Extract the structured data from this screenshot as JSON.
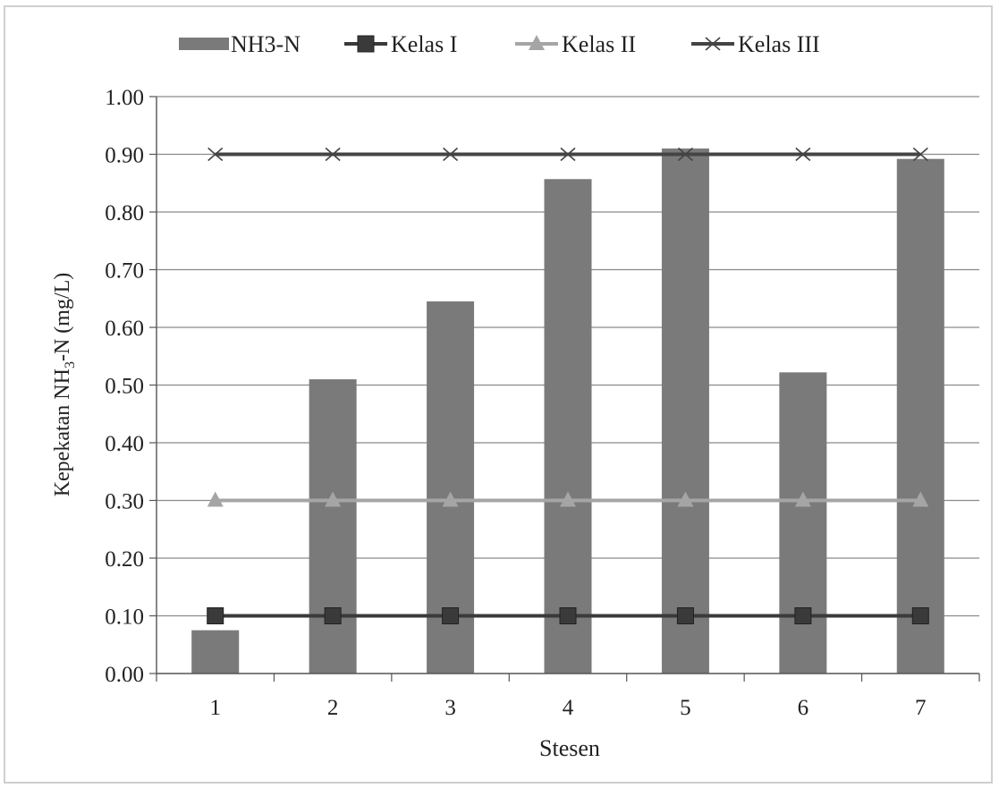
{
  "chart_data": {
    "type": "bar",
    "title": "",
    "xlabel": "Stesen",
    "ylabel_parts": [
      "Kepekatan NH",
      "3",
      "-N  (mg/L)"
    ],
    "categories": [
      "1",
      "2",
      "3",
      "4",
      "5",
      "6",
      "7"
    ],
    "ylim": [
      0,
      1.0
    ],
    "yticks": [
      "0.00",
      "0.10",
      "0.20",
      "0.30",
      "0.40",
      "0.50",
      "0.60",
      "0.70",
      "0.80",
      "0.90",
      "1.00"
    ],
    "grid": "horizontal",
    "legend_position": "top",
    "series": [
      {
        "name": "NH3-N",
        "kind": "bar",
        "marker": "none",
        "color": "#7a7a7a",
        "values": [
          0.075,
          0.51,
          0.645,
          0.857,
          0.91,
          0.522,
          0.892
        ]
      },
      {
        "name": "Kelas I",
        "kind": "line",
        "marker": "square",
        "color": "#3a3a3a",
        "values": [
          0.1,
          0.1,
          0.1,
          0.1,
          0.1,
          0.1,
          0.1
        ]
      },
      {
        "name": "Kelas II",
        "kind": "line",
        "marker": "triangle",
        "color": "#a5a5a5",
        "values": [
          0.3,
          0.3,
          0.3,
          0.3,
          0.3,
          0.3,
          0.3
        ]
      },
      {
        "name": "Kelas III",
        "kind": "line",
        "marker": "x",
        "color": "#444444",
        "values": [
          0.9,
          0.9,
          0.9,
          0.9,
          0.9,
          0.9,
          0.9
        ]
      }
    ]
  }
}
